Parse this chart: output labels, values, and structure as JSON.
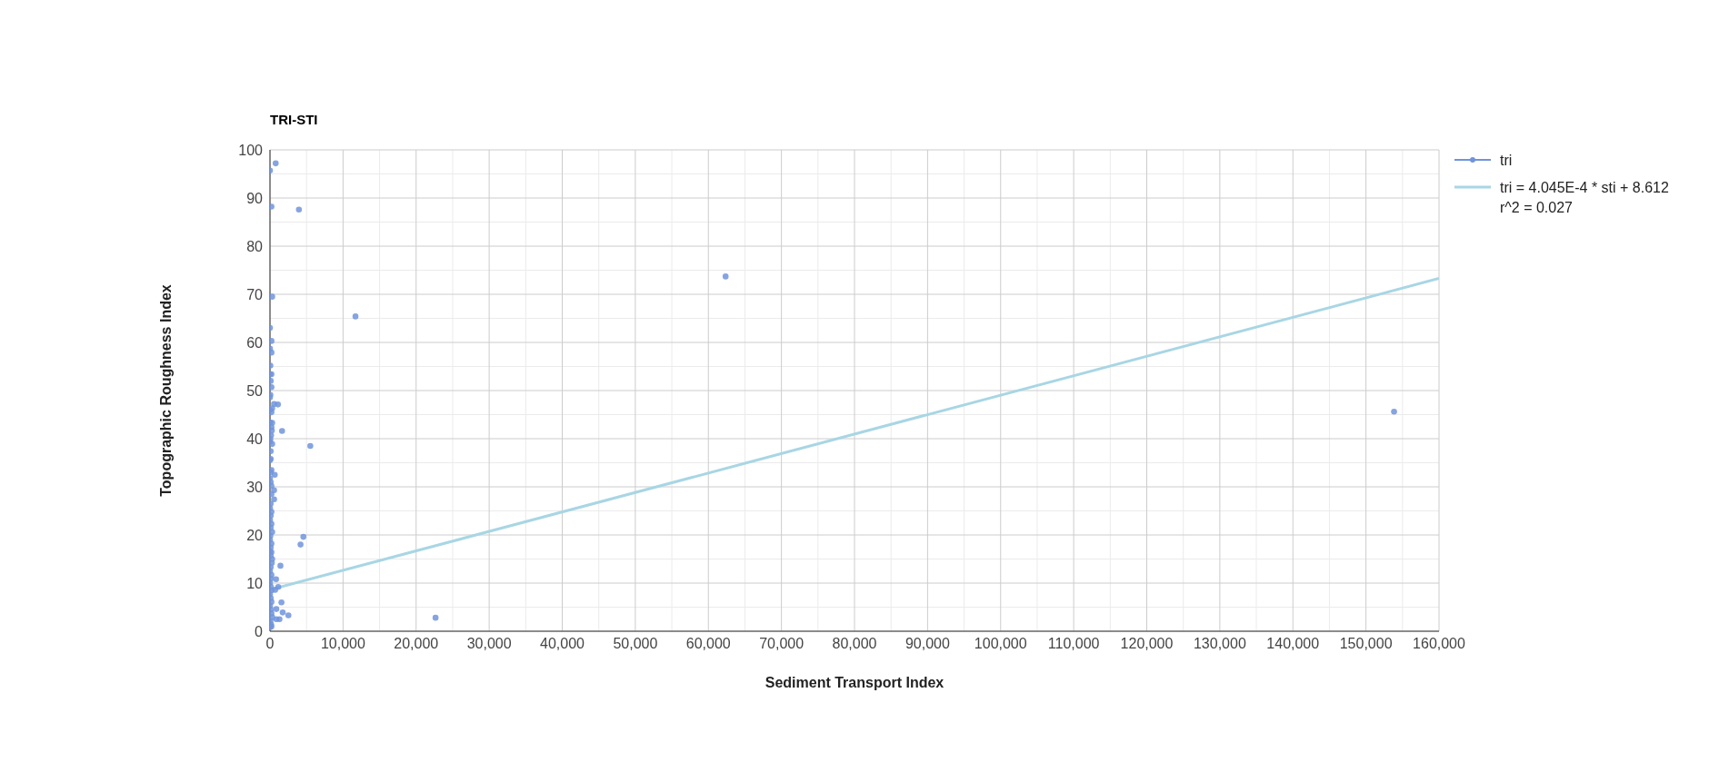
{
  "chart_data": {
    "type": "scatter",
    "title": "TRI-STI",
    "xlabel": "Sediment Transport Index",
    "ylabel": "Topographic Roughness Index",
    "xlim": [
      0,
      160000
    ],
    "ylim": [
      0,
      100
    ],
    "xticks": [
      0,
      {
        "value": 10000,
        "label": "10,000"
      },
      {
        "value": 20000,
        "label": "20,000"
      },
      {
        "value": 30000,
        "label": "30,000"
      },
      {
        "value": 40000,
        "label": "40,000"
      },
      {
        "value": 50000,
        "label": "50,000"
      },
      {
        "value": 60000,
        "label": "60,000"
      },
      {
        "value": 70000,
        "label": "70,000"
      },
      {
        "value": 80000,
        "label": "80,000"
      },
      {
        "value": 90000,
        "label": "90,000"
      },
      {
        "value": 100000,
        "label": "100,000"
      },
      {
        "value": 110000,
        "label": "110,000"
      },
      {
        "value": 120000,
        "label": "120,000"
      },
      {
        "value": 130000,
        "label": "130,000"
      },
      {
        "value": 140000,
        "label": "140,000"
      },
      {
        "value": 150000,
        "label": "150,000"
      },
      {
        "value": 160000,
        "label": "160,000"
      }
    ],
    "yticks": [
      0,
      10,
      20,
      30,
      40,
      50,
      60,
      70,
      80,
      90,
      100
    ],
    "grid": true,
    "legend": "top right",
    "marker": "circle",
    "series": [
      {
        "name": "tri",
        "color": "#7094dc",
        "x": [
          780,
          0,
          200,
          3960,
          300,
          11700,
          0,
          200,
          0,
          200,
          50,
          0,
          200,
          100,
          200,
          50,
          0,
          560,
          1090,
          0,
          200,
          300,
          1650,
          0,
          300,
          200,
          250,
          150,
          50,
          0,
          300,
          5520,
          100,
          100,
          0,
          200,
          100,
          650,
          0,
          100,
          200,
          560,
          200,
          560,
          100,
          0,
          200,
          100,
          0,
          200,
          100,
          300,
          50,
          0,
          200,
          100,
          0,
          200,
          100,
          300,
          4570,
          4180,
          250,
          100,
          0,
          200,
          100,
          1430,
          0,
          100,
          200,
          830,
          1130,
          700,
          0,
          100,
          200,
          1570,
          870,
          1740,
          2520,
          1300,
          870,
          0,
          100,
          200,
          300,
          22660,
          62360,
          153850,
          50,
          150,
          0,
          200
        ],
        "values": [
          97.2,
          95.7,
          88.2,
          87.6,
          69.5,
          65.4,
          63.0,
          60.3,
          58.7,
          57.9,
          55.2,
          53.4,
          53.4,
          52.0,
          50.7,
          49.1,
          48.6,
          47.2,
          47.1,
          46.0,
          45.5,
          46.3,
          41.6,
          43.4,
          43.3,
          42.4,
          41.7,
          40.7,
          39.9,
          39.4,
          38.9,
          38.5,
          37.4,
          35.8,
          35.5,
          33.5,
          33.0,
          32.5,
          31.8,
          31.0,
          30.2,
          29.3,
          28.5,
          27.4,
          26.5,
          25.6,
          24.8,
          24.0,
          23.1,
          22.3,
          21.5,
          20.6,
          19.8,
          19.0,
          18.2,
          17.4,
          16.6,
          16.4,
          15.7,
          15.0,
          19.6,
          18.0,
          14.2,
          13.3,
          12.5,
          11.7,
          10.9,
          13.6,
          10.1,
          9.3,
          8.5,
          10.8,
          9.2,
          8.6,
          7.7,
          6.9,
          6.1,
          6.0,
          4.6,
          3.9,
          3.3,
          2.5,
          2.5,
          5.3,
          4.5,
          3.7,
          2.9,
          2.8,
          73.7,
          45.6,
          2.1,
          1.4,
          0.8,
          1.0
        ]
      },
      {
        "name": "tri = 4.045E-4 * sti + 8.612\nr^2 = 0.027",
        "type": "line",
        "color": "#a8d6e4",
        "x": [
          0,
          160000
        ],
        "values": [
          8.6,
          73.3
        ],
        "marker": "none",
        "line_style": "solid"
      }
    ]
  }
}
